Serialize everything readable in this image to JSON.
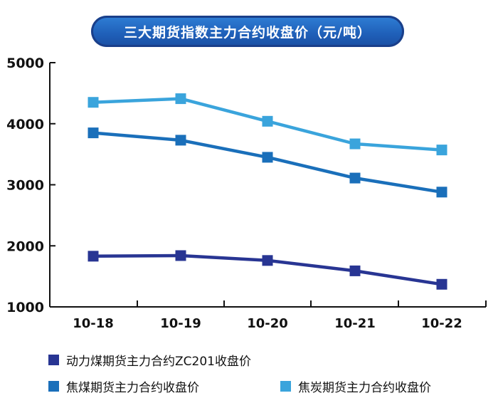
{
  "chart_data": {
    "type": "line",
    "title": "三大期货指数主力合约收盘价（元/吨）",
    "categories": [
      "10-18",
      "10-19",
      "10-20",
      "10-21",
      "10-22"
    ],
    "ylim": [
      1000,
      5000
    ],
    "yticks": [
      "1000",
      "2000",
      "3000",
      "4000",
      "5000"
    ],
    "grid": false,
    "series": [
      {
        "name": "焦炭期货主力合约收盘价",
        "color": "#3aa4dc",
        "values": [
          4350,
          4410,
          4040,
          3670,
          3570
        ]
      },
      {
        "name": "焦煤期货主力合约收盘价",
        "color": "#1a6fba",
        "values": [
          3850,
          3730,
          3450,
          3110,
          2880
        ]
      },
      {
        "name": "动力煤期货主力合约ZC201收盘价",
        "color": "#283593",
        "values": [
          1830,
          1840,
          1760,
          1590,
          1370
        ]
      }
    ]
  }
}
